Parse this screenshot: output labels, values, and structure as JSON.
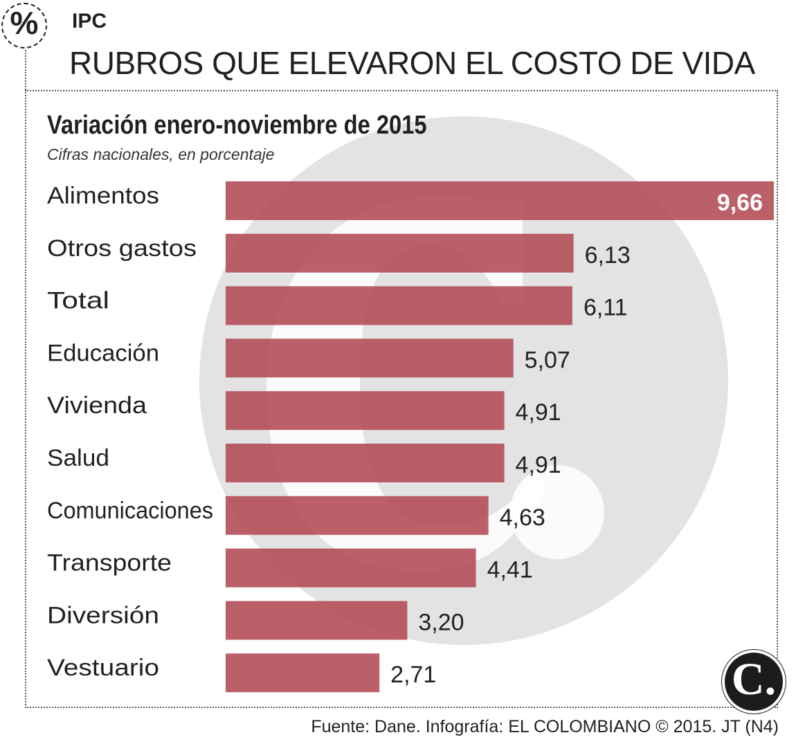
{
  "header": {
    "icon_symbol": "%",
    "kicker": "IPC",
    "headline": "RUBROS QUE ELEVARON EL COSTO DE VIDA"
  },
  "chart_data": {
    "type": "bar",
    "orientation": "horizontal",
    "title": "Variación enero-noviembre de 2015",
    "subtitle": "Cifras nacionales, en porcentaje",
    "categories": [
      "Alimentos",
      "Otros gastos",
      "Total",
      "Educación",
      "Vivienda",
      "Salud",
      "Comunicaciones",
      "Transporte",
      "Diversión",
      "Vestuario"
    ],
    "values": [
      9.66,
      6.13,
      6.11,
      5.07,
      4.91,
      4.91,
      4.63,
      4.41,
      3.2,
      2.71
    ],
    "value_labels": [
      "9,66",
      "6,13",
      "6,11",
      "5,07",
      "4,91",
      "4,91",
      "4,63",
      "4,41",
      "3,20",
      "2,71"
    ],
    "xlim": [
      0,
      9.66
    ],
    "grid": false,
    "legend": "none",
    "bar_color": "#b24a54",
    "highlight_label_color": "#ffffff"
  },
  "logo": {
    "text": "C."
  },
  "footer": {
    "source": "Fuente: Dane. Infografía: EL COLOMBIANO © 2015. JT (N4)"
  },
  "colors": {
    "watermark": "#e4e3e4",
    "text": "#231f20",
    "bar": "#b24a54"
  }
}
